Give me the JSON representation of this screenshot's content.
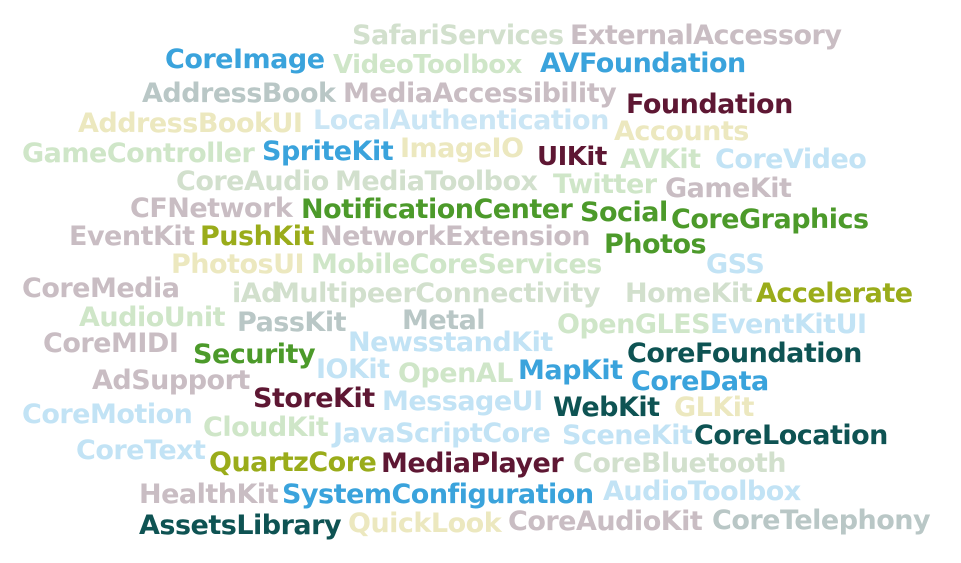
{
  "palette": {
    "pale_grey": "#d8ddd0",
    "pale_mauve": "#d4c4c9",
    "grey_teal": "#b9c7c6",
    "pale_green": "#cfe6c8",
    "pale_yellow": "#ece8bf",
    "pale_blue": "#cbe6f5",
    "blue": "#3aa3dc",
    "maroon": "#5e1733",
    "green": "#4c9a2a",
    "olive": "#9aac1a",
    "dark_teal": "#0e5353"
  },
  "words": [
    "SafariServices",
    "ExternalAccessory",
    "CoreImage",
    "VideoToolbox",
    "AVFoundation",
    "AddressBook",
    "MediaAccessibility",
    "Foundation",
    "AddressBookUI",
    "LocalAuthentication",
    "Accounts",
    "GameController",
    "SpriteKit",
    "ImageIO",
    "UIKit",
    "AVKit",
    "CoreVideo",
    "CoreAudio",
    "MediaToolbox",
    "Twitter",
    "GameKit",
    "CFNetwork",
    "NotificationCenter",
    "Social",
    "CoreGraphics",
    "EventKit",
    "PushKit",
    "NetworkExtension",
    "Photos",
    "PhotosUI",
    "MobileCoreServices",
    "GSS",
    "CoreMedia",
    "iAd",
    "MultipeerConnectivity",
    "HomeKit",
    "Accelerate",
    "AudioUnit",
    "PassKit",
    "Metal",
    "OpenGLES",
    "EventKitUI",
    "CoreMIDI",
    "NewsstandKit",
    "Security",
    "CoreFoundation",
    "AdSupport",
    "IOKit",
    "OpenAL",
    "MapKit",
    "CoreData",
    "StoreKit",
    "MessageUI",
    "WebKit",
    "GLKit",
    "CoreMotion",
    "CloudKit",
    "JavaScriptCore",
    "SceneKit",
    "CoreLocation",
    "CoreText",
    "QuartzCore",
    "MediaPlayer",
    "CoreBluetooth",
    "HealthKit",
    "SystemConfiguration",
    "AudioToolbox",
    "AssetsLibrary",
    "QuickLook",
    "CoreAudioKit",
    "CoreTelephony"
  ]
}
